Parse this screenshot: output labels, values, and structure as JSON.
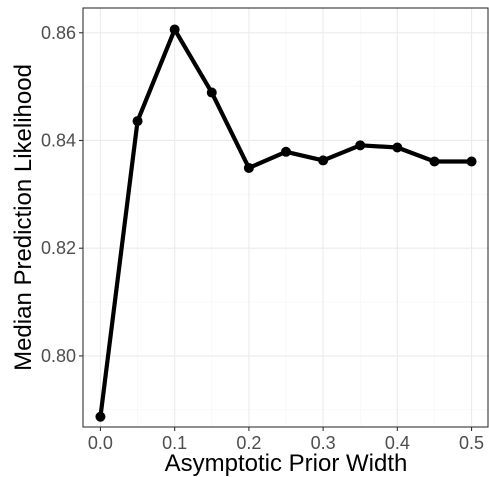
{
  "chart_data": {
    "type": "line",
    "title": "",
    "xlabel": "Asymptotic Prior Width",
    "ylabel": "Median Prediction Likelihood",
    "xlim": [
      -0.0235,
      0.5235
    ],
    "ylim": [
      0.7868,
      0.8646
    ],
    "x_ticks": [
      0.0,
      0.1,
      0.2,
      0.3,
      0.4,
      0.5
    ],
    "x_tick_labels": [
      "0.0",
      "0.1",
      "0.2",
      "0.3",
      "0.4",
      "0.5"
    ],
    "y_ticks": [
      0.8,
      0.82,
      0.84,
      0.86
    ],
    "y_tick_labels": [
      "0.80",
      "0.82",
      "0.84",
      "0.86"
    ],
    "grid": true,
    "series": [
      {
        "x": [
          0.0,
          0.05,
          0.1,
          0.15,
          0.2,
          0.25,
          0.3,
          0.35,
          0.4,
          0.45,
          0.5
        ],
        "values": [
          0.7887,
          0.8436,
          0.8606,
          0.8489,
          0.8349,
          0.8379,
          0.8363,
          0.8391,
          0.8387,
          0.8361,
          0.8361
        ]
      }
    ],
    "colors": {
      "line": "#000000",
      "grid_major": "#ebebeb",
      "grid_minor": "#f5f5f5",
      "panel_border": "#333333",
      "tick_text": "#4d4d4d"
    }
  }
}
